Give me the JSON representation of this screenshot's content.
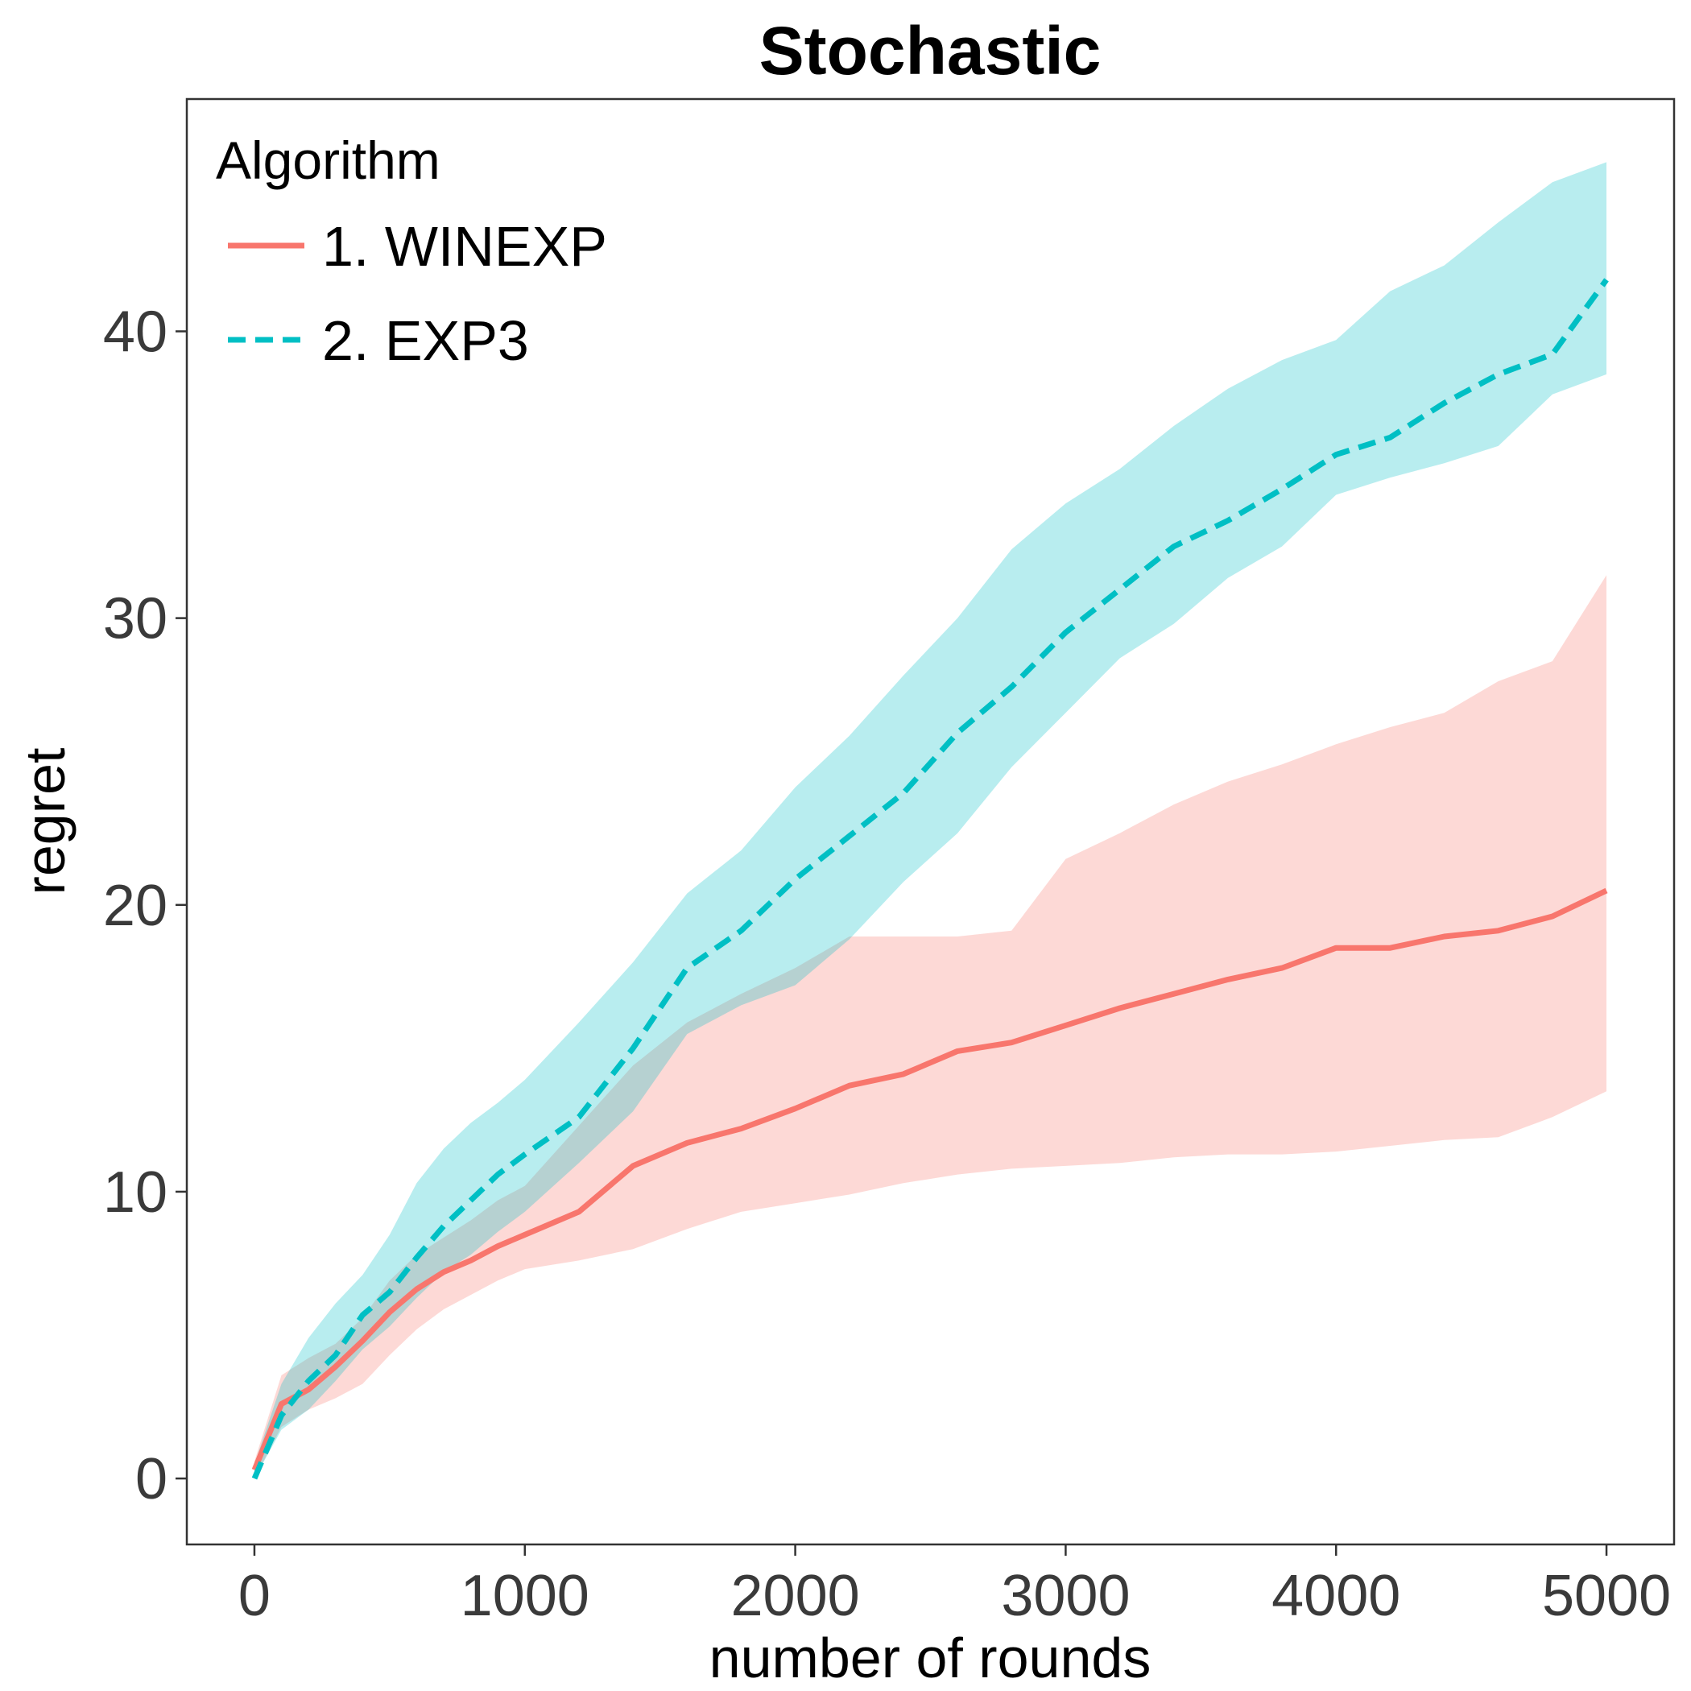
{
  "chart_data": {
    "type": "line",
    "title": "Stochastic",
    "xlabel": "number of rounds",
    "ylabel": "regret",
    "xlim": [
      -250,
      5250
    ],
    "ylim": [
      -2.3,
      48.1
    ],
    "xticks": [
      0,
      1000,
      2000,
      3000,
      4000,
      5000
    ],
    "yticks": [
      0,
      10,
      20,
      30,
      40
    ],
    "legend": {
      "title": "Algorithm",
      "position": "top-left"
    },
    "series": [
      {
        "name": "1. WINEXP",
        "color": "#F8766D",
        "band_color": "#F8766D",
        "linestyle": "solid",
        "x": [
          0,
          100,
          200,
          300,
          400,
          500,
          600,
          700,
          800,
          900,
          1000,
          1200,
          1400,
          1600,
          1800,
          2000,
          2200,
          2400,
          2600,
          2800,
          3000,
          3200,
          3400,
          3600,
          3800,
          4000,
          4200,
          4400,
          4600,
          4800,
          5000
        ],
        "mean": [
          0.3,
          2.6,
          3.1,
          3.9,
          4.8,
          5.8,
          6.6,
          7.2,
          7.6,
          8.1,
          8.5,
          9.3,
          10.9,
          11.7,
          12.2,
          12.9,
          13.7,
          14.1,
          14.9,
          15.2,
          15.8,
          16.4,
          16.9,
          17.4,
          17.8,
          18.5,
          18.5,
          18.9,
          19.1,
          19.6,
          20.5
        ],
        "lower": [
          0.0,
          1.8,
          2.4,
          2.8,
          3.3,
          4.3,
          5.2,
          5.9,
          6.4,
          6.9,
          7.3,
          7.6,
          8.0,
          8.7,
          9.3,
          9.6,
          9.9,
          10.3,
          10.6,
          10.8,
          10.9,
          11.0,
          11.2,
          11.3,
          11.3,
          11.4,
          11.6,
          11.8,
          11.9,
          12.6,
          13.5
        ],
        "upper": [
          0.6,
          3.6,
          4.2,
          4.7,
          5.6,
          6.9,
          7.8,
          8.4,
          9.0,
          9.7,
          10.2,
          12.3,
          14.4,
          15.9,
          16.9,
          17.8,
          18.9,
          18.9,
          18.9,
          19.1,
          21.6,
          22.5,
          23.5,
          24.3,
          24.9,
          25.6,
          26.2,
          26.7,
          27.8,
          28.5,
          31.5
        ]
      },
      {
        "name": "2. EXP3",
        "color": "#00BFC4",
        "band_color": "#00BFC4",
        "linestyle": "dashed",
        "x": [
          0,
          100,
          200,
          300,
          400,
          500,
          600,
          700,
          800,
          900,
          1000,
          1200,
          1400,
          1600,
          1800,
          2000,
          2200,
          2400,
          2600,
          2800,
          3000,
          3200,
          3400,
          3600,
          3800,
          4000,
          4200,
          4400,
          4600,
          4800,
          5000
        ],
        "mean": [
          0.0,
          2.2,
          3.4,
          4.3,
          5.7,
          6.5,
          7.7,
          8.8,
          9.7,
          10.6,
          11.3,
          12.6,
          15.0,
          17.8,
          19.1,
          20.9,
          22.4,
          23.9,
          26.0,
          27.6,
          29.5,
          31.0,
          32.5,
          33.4,
          34.5,
          35.7,
          36.3,
          37.5,
          38.5,
          39.2,
          41.8
        ],
        "lower": [
          0.0,
          1.7,
          2.4,
          3.4,
          4.5,
          5.3,
          6.3,
          7.2,
          7.8,
          8.6,
          9.3,
          11.0,
          12.8,
          15.5,
          16.5,
          17.2,
          18.8,
          20.8,
          22.5,
          24.8,
          26.7,
          28.6,
          29.8,
          31.4,
          32.5,
          34.3,
          34.9,
          35.4,
          36.0,
          37.8,
          38.5
        ],
        "upper": [
          0.5,
          3.3,
          4.9,
          6.1,
          7.1,
          8.5,
          10.3,
          11.5,
          12.4,
          13.1,
          13.9,
          15.9,
          18.0,
          20.4,
          21.9,
          24.1,
          25.9,
          28.0,
          30.0,
          32.4,
          34.0,
          35.2,
          36.7,
          38.0,
          39.0,
          39.7,
          41.4,
          42.3,
          43.8,
          45.2,
          45.9
        ]
      }
    ]
  }
}
